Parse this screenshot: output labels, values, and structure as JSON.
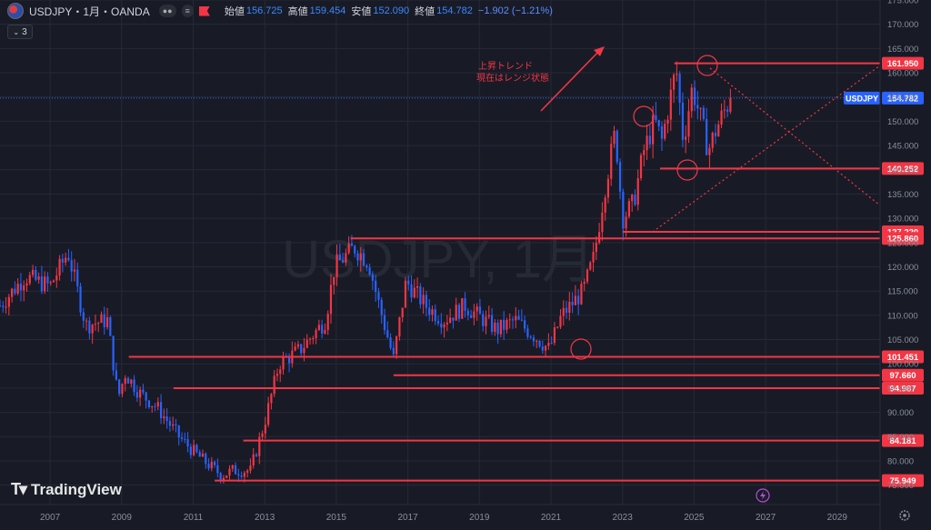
{
  "header": {
    "symbol_title": "USDJPY・1月・OANDA",
    "interval_badge": "3",
    "open_label": "始値",
    "open_value": "156.725",
    "high_label": "高値",
    "high_value": "159.454",
    "low_label": "安値",
    "low_value": "152.090",
    "close_label": "終値",
    "close_value": "154.782",
    "change": "−1.902 (−1.21%)"
  },
  "watermark": "USDJPY, 1月",
  "logo_text": "TradingView",
  "annotation": {
    "line1": "上昇トレンド",
    "line2": "現在はレンジ状態"
  },
  "colors": {
    "background": "#181b26",
    "up": "#f23645",
    "down": "#2962ff",
    "level": "#f23645",
    "price": "#2962ff",
    "grid": "#252a36"
  },
  "chart_data": {
    "type": "candlestick",
    "title": "USDJPY, 1月",
    "x_range": [
      2005.6,
      2030.2
    ],
    "ylim": [
      71,
      175
    ],
    "x_ticks": [
      "2007",
      "2009",
      "2011",
      "2013",
      "2015",
      "2017",
      "2019",
      "2021",
      "2023",
      "2025",
      "2027",
      "2029"
    ],
    "y_ticks": [
      "75.000",
      "80.000",
      "85.000",
      "90.000",
      "95.000",
      "100.000",
      "105.000",
      "110.000",
      "115.000",
      "120.000",
      "125.000",
      "130.000",
      "135.000",
      "140.000",
      "145.000",
      "150.000",
      "155.000",
      "160.000",
      "165.000",
      "170.000",
      "175.000"
    ],
    "price_path": [
      [
        2005.6,
        112
      ],
      [
        2006.3,
        118
      ],
      [
        2007.0,
        116
      ],
      [
        2007.5,
        123
      ],
      [
        2008.0,
        108
      ],
      [
        2008.6,
        109
      ],
      [
        2008.9,
        93
      ],
      [
        2009.1,
        98
      ],
      [
        2009.5,
        94
      ],
      [
        2010.0,
        91
      ],
      [
        2010.6,
        85
      ],
      [
        2011.0,
        82
      ],
      [
        2011.3,
        80
      ],
      [
        2011.8,
        77
      ],
      [
        2012.1,
        78
      ],
      [
        2012.6,
        78
      ],
      [
        2013.0,
        88
      ],
      [
        2013.4,
        100
      ],
      [
        2014.0,
        103
      ],
      [
        2014.7,
        109
      ],
      [
        2014.95,
        120
      ],
      [
        2015.5,
        124
      ],
      [
        2015.9,
        121
      ],
      [
        2016.2,
        112
      ],
      [
        2016.6,
        101
      ],
      [
        2016.95,
        117
      ],
      [
        2017.5,
        112
      ],
      [
        2018.0,
        109
      ],
      [
        2018.6,
        112
      ],
      [
        2018.95,
        110
      ],
      [
        2019.5,
        107
      ],
      [
        2020.0,
        109
      ],
      [
        2020.5,
        106
      ],
      [
        2020.95,
        103
      ],
      [
        2021.3,
        110
      ],
      [
        2021.9,
        115
      ],
      [
        2022.2,
        122
      ],
      [
        2022.5,
        136
      ],
      [
        2022.8,
        148
      ],
      [
        2023.0,
        130
      ],
      [
        2023.3,
        133
      ],
      [
        2023.6,
        144
      ],
      [
        2023.9,
        150
      ],
      [
        2024.1,
        146
      ],
      [
        2024.5,
        161
      ],
      [
        2024.7,
        146
      ],
      [
        2024.95,
        157
      ],
      [
        2025.2,
        150
      ],
      [
        2025.4,
        144
      ],
      [
        2025.6,
        148
      ],
      [
        2025.9,
        153
      ],
      [
        2026.05,
        154.782
      ]
    ],
    "horizontal_levels": [
      {
        "value": 161.95,
        "label": "161.950",
        "x_start": 2024.45
      },
      {
        "value": 140.252,
        "label": "140.252",
        "x_start": 2024.05
      },
      {
        "value": 127.22,
        "label": "127.220",
        "x_start": 2023.0
      },
      {
        "value": 125.86,
        "label": "125.860",
        "x_start": 2015.4
      },
      {
        "value": 101.451,
        "label": "101.451",
        "x_start": 2009.2
      },
      {
        "value": 97.66,
        "label": "97.660",
        "x_start": 2016.6
      },
      {
        "value": 94.987,
        "label": "94.987",
        "x_start": 2010.45
      },
      {
        "value": 84.181,
        "label": "84.181",
        "x_start": 2012.4
      },
      {
        "value": 75.949,
        "label": "75.949",
        "x_start": 2011.6
      }
    ],
    "current_price": {
      "value": 154.782,
      "label": "USDJPY",
      "price_label": "154.782"
    }
  }
}
